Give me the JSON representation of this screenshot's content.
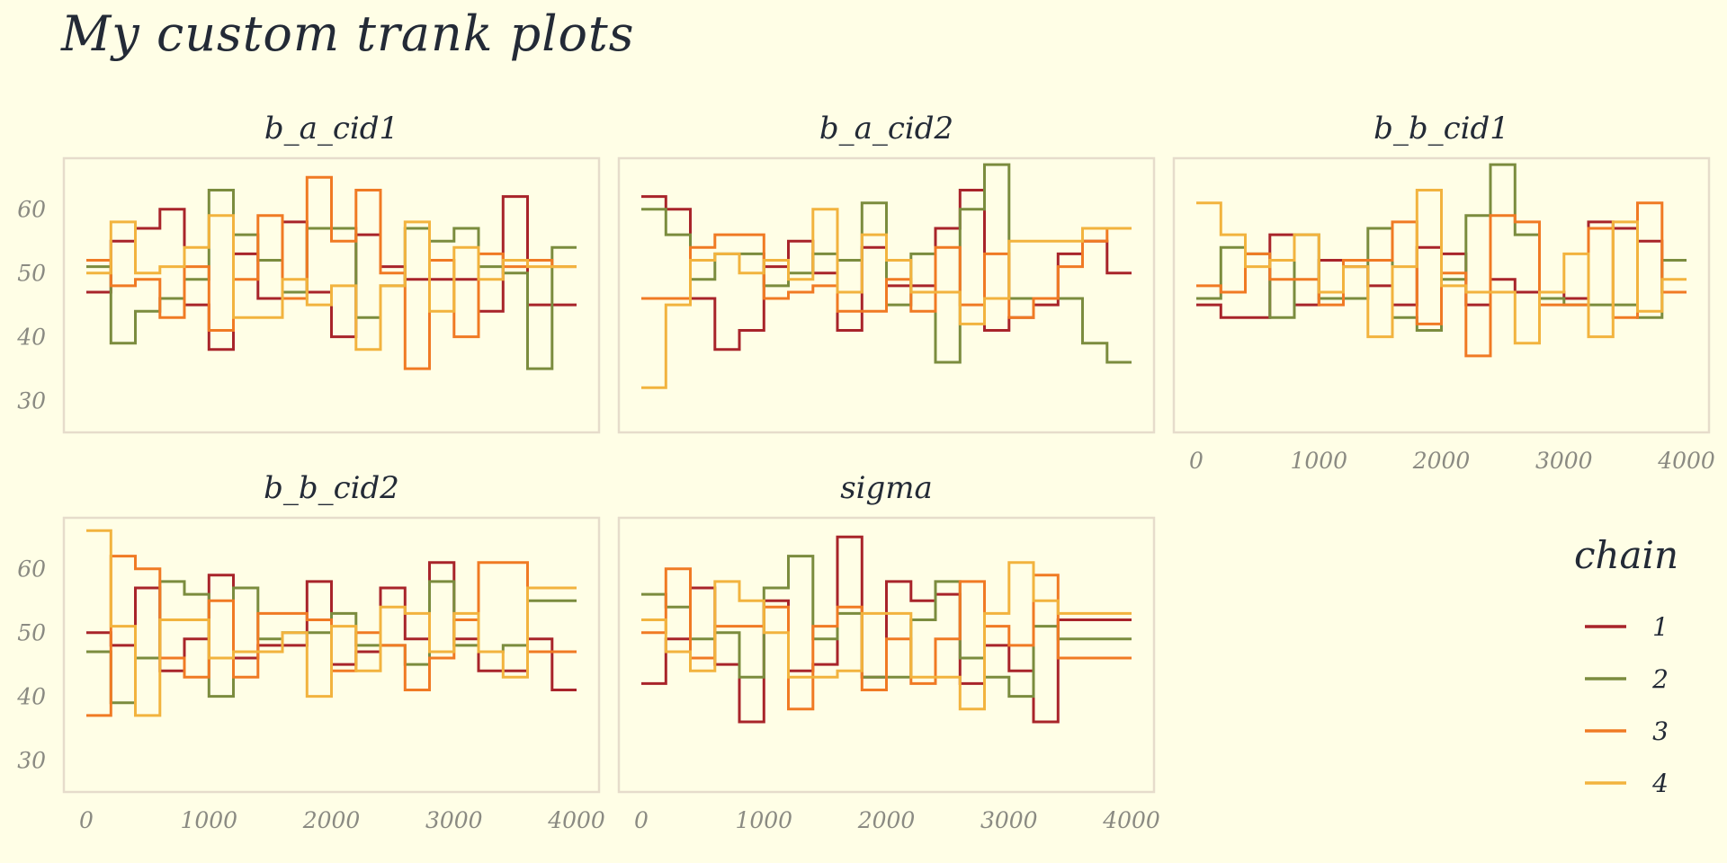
{
  "title": "My custom trank plots",
  "colors": {
    "background": "#fffee6",
    "chain1": "#a8242a",
    "chain2": "#7b8c3e",
    "chain3": "#f07a24",
    "chain4": "#f2b33e",
    "frame": "#e6dccb",
    "text": "#232a36",
    "tick_text": "#8a8a82"
  },
  "chart_data": {
    "type": "line",
    "subtype": "step",
    "title": "My custom trank plots",
    "xlim": [
      0,
      4000
    ],
    "ylim": [
      25,
      68
    ],
    "x_ticks": [
      0,
      1000,
      2000,
      3000,
      4000
    ],
    "y_ticks": [
      30,
      40,
      50,
      60
    ],
    "bin_edges": [
      0,
      200,
      400,
      600,
      800,
      1000,
      1200,
      1400,
      1600,
      1800,
      2000,
      2200,
      2400,
      2600,
      2800,
      3000,
      3200,
      3400,
      3600,
      3800,
      4000
    ],
    "legend": {
      "title": "chain",
      "position": "right",
      "entries": [
        {
          "label": "1",
          "color": "#a8242a"
        },
        {
          "label": "2",
          "color": "#7b8c3e"
        },
        {
          "label": "3",
          "color": "#f07a24"
        },
        {
          "label": "4",
          "color": "#f2b33e"
        }
      ]
    },
    "panels": [
      {
        "name": "b_a_cid1",
        "series": [
          {
            "chain": "1",
            "values": [
              47,
              55,
              57,
              60,
              45,
              38,
              53,
              46,
              58,
              47,
              40,
              56,
              51,
              49,
              49,
              49,
              44,
              62,
              45,
              45
            ]
          },
          {
            "chain": "2",
            "values": [
              51,
              39,
              44,
              46,
              49,
              63,
              56,
              52,
              47,
              57,
              57,
              43,
              48,
              57,
              55,
              57,
              51,
              50,
              35,
              54
            ]
          },
          {
            "chain": "3",
            "values": [
              52,
              48,
              49,
              43,
              51,
              41,
              49,
              59,
              46,
              65,
              55,
              63,
              50,
              35,
              52,
              40,
              53,
              51,
              52,
              51
            ]
          },
          {
            "chain": "4",
            "values": [
              50,
              58,
              50,
              51,
              54,
              59,
              43,
              43,
              49,
              45,
              48,
              38,
              48,
              58,
              44,
              54,
              49,
              52,
              51,
              51
            ]
          }
        ]
      },
      {
        "name": "b_a_cid2",
        "series": [
          {
            "chain": "1",
            "values": [
              62,
              60,
              46,
              38,
              41,
              51,
              55,
              50,
              41,
              54,
              48,
              48,
              57,
              63,
              41,
              43,
              45,
              53,
              55,
              50
            ]
          },
          {
            "chain": "2",
            "values": [
              60,
              56,
              49,
              53,
              53,
              48,
              50,
              53,
              52,
              61,
              45,
              53,
              36,
              60,
              67,
              46,
              46,
              46,
              39,
              36
            ]
          },
          {
            "chain": "3",
            "values": [
              46,
              46,
              54,
              56,
              56,
              46,
              47,
              48,
              44,
              44,
              49,
              44,
              54,
              45,
              53,
              43,
              46,
              51,
              55,
              57
            ]
          },
          {
            "chain": "4",
            "values": [
              32,
              45,
              52,
              53,
              50,
              52,
              49,
              60,
              47,
              56,
              52,
              47,
              47,
              42,
              46,
              55,
              55,
              55,
              57,
              57
            ]
          }
        ]
      },
      {
        "name": "b_b_cid1",
        "series": [
          {
            "chain": "1",
            "values": [
              45,
              43,
              43,
              56,
              45,
              52,
              51,
              48,
              45,
              54,
              53,
              45,
              49,
              47,
              47,
              46,
              58,
              57,
              55,
              47
            ]
          },
          {
            "chain": "2",
            "values": [
              46,
              54,
              53,
              43,
              56,
              46,
              46,
              57,
              43,
              41,
              49,
              59,
              67,
              56,
              46,
              45,
              45,
              45,
              43,
              52
            ]
          },
          {
            "chain": "3",
            "values": [
              48,
              47,
              53,
              49,
              49,
              45,
              52,
              52,
              58,
              42,
              50,
              37,
              59,
              58,
              45,
              45,
              57,
              43,
              61,
              47
            ]
          },
          {
            "chain": "4",
            "values": [
              61,
              56,
              51,
              52,
              56,
              47,
              51,
              40,
              51,
              63,
              48,
              47,
              47,
              39,
              47,
              53,
              40,
              58,
              44,
              49
            ]
          }
        ]
      },
      {
        "name": "b_b_cid2",
        "series": [
          {
            "chain": "1",
            "values": [
              50,
              48,
              57,
              44,
              49,
              59,
              46,
              48,
              48,
              58,
              45,
              47,
              57,
              49,
              61,
              49,
              44,
              44,
              49,
              41
            ]
          },
          {
            "chain": "2",
            "values": [
              47,
              39,
              46,
              58,
              56,
              40,
              57,
              49,
              50,
              50,
              53,
              48,
              48,
              45,
              58,
              48,
              47,
              48,
              55,
              55
            ]
          },
          {
            "chain": "3",
            "values": [
              37,
              62,
              60,
              46,
              43,
              55,
              43,
              53,
              53,
              52,
              44,
              50,
              48,
              41,
              46,
              52,
              61,
              61,
              47,
              47
            ]
          },
          {
            "chain": "4",
            "values": [
              66,
              51,
              37,
              52,
              52,
              46,
              47,
              47,
              50,
              40,
              51,
              44,
              54,
              53,
              47,
              53,
              47,
              43,
              57,
              57
            ]
          }
        ]
      },
      {
        "name": "sigma",
        "series": [
          {
            "chain": "1",
            "values": [
              42,
              49,
              57,
              45,
              36,
              55,
              44,
              45,
              65,
              43,
              58,
              55,
              56,
              42,
              48,
              44,
              36,
              52,
              52,
              52
            ]
          },
          {
            "chain": "2",
            "values": [
              56,
              54,
              49,
              50,
              43,
              57,
              62,
              49,
              53,
              43,
              43,
              52,
              58,
              46,
              43,
              40,
              51,
              49,
              49,
              49
            ]
          },
          {
            "chain": "3",
            "values": [
              50,
              60,
              46,
              51,
              51,
              54,
              38,
              51,
              54,
              41,
              49,
              42,
              49,
              58,
              51,
              48,
              59,
              46,
              46,
              46
            ]
          },
          {
            "chain": "4",
            "values": [
              52,
              47,
              44,
              58,
              55,
              50,
              43,
              43,
              44,
              53,
              53,
              43,
              43,
              38,
              53,
              61,
              55,
              53,
              53,
              53
            ]
          }
        ]
      }
    ]
  }
}
